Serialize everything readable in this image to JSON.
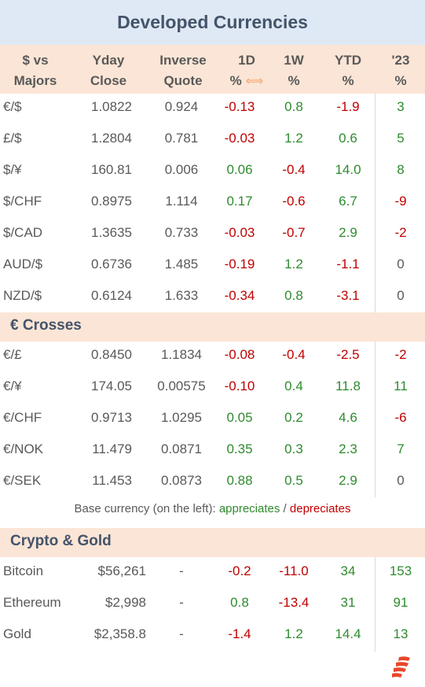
{
  "title": "Developed Currencies",
  "headers": {
    "pair": [
      "$ vs",
      "Majors"
    ],
    "close": [
      "Yday",
      "Close"
    ],
    "inverse": [
      "Inverse",
      "Quote"
    ],
    "d1": [
      "1D",
      "%"
    ],
    "w1": [
      "1W",
      "%"
    ],
    "ytd": [
      "YTD",
      "%"
    ],
    "y23": [
      "'23",
      "%"
    ]
  },
  "majors": [
    {
      "pair": "€/$",
      "close": "1.0822",
      "inverse": "0.924",
      "d1": "-0.13",
      "w1": "0.8",
      "ytd": "-1.9",
      "y23": "3"
    },
    {
      "pair": "£/$",
      "close": "1.2804",
      "inverse": "0.781",
      "d1": "-0.03",
      "w1": "1.2",
      "ytd": "0.6",
      "y23": "5"
    },
    {
      "pair": "$/¥",
      "close": "160.81",
      "inverse": "0.006",
      "d1": "0.06",
      "w1": "-0.4",
      "ytd": "14.0",
      "y23": "8"
    },
    {
      "pair": "$/CHF",
      "close": "0.8975",
      "inverse": "1.114",
      "d1": "0.17",
      "w1": "-0.6",
      "ytd": "6.7",
      "y23": "-9"
    },
    {
      "pair": "$/CAD",
      "close": "1.3635",
      "inverse": "0.733",
      "d1": "-0.03",
      "w1": "-0.7",
      "ytd": "2.9",
      "y23": "-2"
    },
    {
      "pair": "AUD/$",
      "close": "0.6736",
      "inverse": "1.485",
      "d1": "-0.19",
      "w1": "1.2",
      "ytd": "-1.1",
      "y23": "0"
    },
    {
      "pair": "NZD/$",
      "close": "0.6124",
      "inverse": "1.633",
      "d1": "-0.34",
      "w1": "0.8",
      "ytd": "-3.1",
      "y23": "0"
    }
  ],
  "crosses_title": "€ Crosses",
  "crosses": [
    {
      "pair": "€/£",
      "close": "0.8450",
      "inverse": "1.1834",
      "d1": "-0.08",
      "w1": "-0.4",
      "ytd": "-2.5",
      "y23": "-2"
    },
    {
      "pair": "€/¥",
      "close": "174.05",
      "inverse": "0.00575",
      "d1": "-0.10",
      "w1": "0.4",
      "ytd": "11.8",
      "y23": "11"
    },
    {
      "pair": "€/CHF",
      "close": "0.9713",
      "inverse": "1.0295",
      "d1": "0.05",
      "w1": "0.2",
      "ytd": "4.6",
      "y23": "-6"
    },
    {
      "pair": "€/NOK",
      "close": "11.479",
      "inverse": "0.0871",
      "d1": "0.35",
      "w1": "0.3",
      "ytd": "2.3",
      "y23": "7"
    },
    {
      "pair": "€/SEK",
      "close": "11.453",
      "inverse": "0.0873",
      "d1": "0.88",
      "w1": "0.5",
      "ytd": "2.9",
      "y23": "0"
    }
  ],
  "footnote": {
    "prefix": "Base currency (on the left):",
    "appreciates": "appreciates",
    "sep": "/",
    "depreciates": "depreciates"
  },
  "crypto_title": "Crypto & Gold",
  "crypto": [
    {
      "pair": "Bitcoin",
      "close": "$56,261",
      "inverse": "-",
      "d1": "-0.2",
      "w1": "-11.0",
      "ytd": "34",
      "y23": "153"
    },
    {
      "pair": "Ethereum",
      "close": "$2,998",
      "inverse": "-",
      "d1": "0.8",
      "w1": "-13.4",
      "ytd": "31",
      "y23": "91"
    },
    {
      "pair": "Gold",
      "close": "$2,358.8",
      "inverse": "-",
      "d1": "-1.4",
      "w1": "1.2",
      "ytd": "14.4",
      "y23": "13"
    }
  ],
  "colors": {
    "positive": "#2e8b2e",
    "negative": "#c00000",
    "title_bg": "#dfe9f5",
    "header_bg": "#fbe5d6",
    "logo": "#e8472a"
  },
  "icons": {
    "swap": "left-right-arrow-icon",
    "logo": "brand-logo-icon"
  }
}
